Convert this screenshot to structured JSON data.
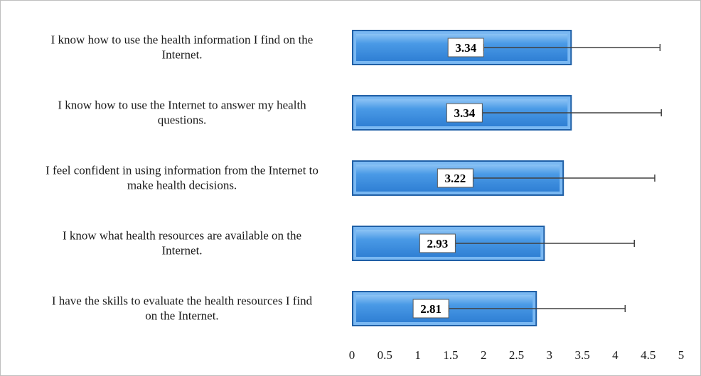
{
  "chart_data": {
    "type": "bar",
    "orientation": "horizontal",
    "categories": [
      "I know how to use the health information I find on the Internet.",
      "I know how to use the Internet to answer my health questions.",
      "I feel confident in using information from the Internet to make health decisions.",
      "I know what health resources are available on the Internet.",
      "I have the skills to evaluate the health resources I find on the Internet."
    ],
    "category_lines": [
      [
        "I know how to use the health information I find on the",
        "Internet."
      ],
      [
        "I know how to use the Internet to answer my health",
        "questions."
      ],
      [
        "I feel confident in using information from the Internet to",
        "make health decisions."
      ],
      [
        "I know what health resources are available on the",
        "Internet."
      ],
      [
        "I have the skills to evaluate the health resources I find",
        "on the Internet."
      ]
    ],
    "values": [
      3.34,
      3.34,
      3.22,
      2.93,
      2.81
    ],
    "data_labels": [
      "3.34",
      "3.34",
      "3.22",
      "2.93",
      "2.81"
    ],
    "error_bars": [
      {
        "low": 2.0,
        "high": 4.68
      },
      {
        "low": 1.98,
        "high": 4.7
      },
      {
        "low": 1.84,
        "high": 4.6
      },
      {
        "low": 1.57,
        "high": 4.29
      },
      {
        "low": 1.47,
        "high": 4.15
      }
    ],
    "xlim": [
      0,
      5
    ],
    "xticks": [
      "0",
      "0.5",
      "1",
      "1.5",
      "2",
      "2.5",
      "3",
      "3.5",
      "4",
      "4.5",
      "5"
    ],
    "xtick_values": [
      0,
      0.5,
      1,
      1.5,
      2,
      2.5,
      3,
      3.5,
      4,
      4.5,
      5
    ],
    "title": "",
    "xlabel": "",
    "ylabel": "",
    "grid": false,
    "legend": "none",
    "colors": {
      "bar_fill": "#3d8fe0",
      "bar_highlight": "#7ab8f2",
      "bar_edge": "#1f5fa6",
      "error_bar": "#404040",
      "label_box_fill": "#ffffff",
      "label_box_border": "#595959"
    }
  }
}
